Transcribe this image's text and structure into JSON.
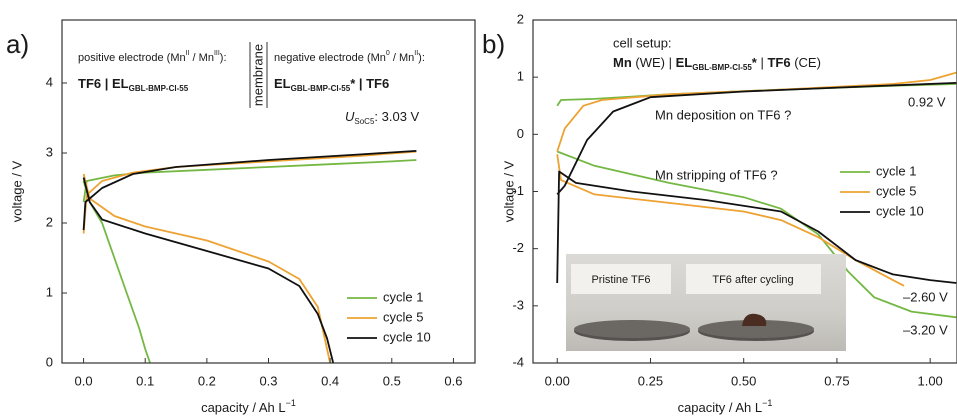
{
  "chart_data": [
    {
      "type": "line",
      "panel_label": "a)",
      "xlabel": {
        "text": "capacity / Ah L",
        "sup": "−1"
      },
      "ylabel": "voltage / V",
      "xlim": [
        -0.035,
        0.635
      ],
      "ylim": [
        0,
        4.9
      ],
      "xticks": [
        {
          "value": 0,
          "label": "0.0"
        },
        0.1,
        0.2,
        0.3,
        0.4,
        0.5,
        0.6
      ],
      "yticks": [
        0,
        1,
        2,
        3,
        4
      ],
      "legend": "lower right",
      "series": [
        {
          "name": "cycle 1",
          "color": "#74b843",
          "x": [
            0,
            0.005,
            0.05,
            0.1,
            0.2,
            0.3,
            0.4,
            0.5,
            0.54,
            null,
            0,
            0.01,
            0.03,
            0.05,
            0.07,
            0.09,
            0.1,
            0.108
          ],
          "values": [
            2.3,
            2.6,
            2.68,
            2.72,
            2.76,
            2.8,
            2.84,
            2.88,
            2.9,
            null,
            2.6,
            2.3,
            2.0,
            1.5,
            1.0,
            0.5,
            0.2,
            0
          ]
        },
        {
          "name": "cycle 5",
          "color": "#eda232",
          "x": [
            0,
            0.005,
            0.03,
            0.08,
            0.15,
            0.3,
            0.45,
            0.54,
            null,
            0,
            0.01,
            0.05,
            0.1,
            0.2,
            0.3,
            0.35,
            0.38,
            0.39,
            0.4
          ],
          "values": [
            1.85,
            2.4,
            2.6,
            2.72,
            2.8,
            2.88,
            2.96,
            3.02,
            null,
            2.7,
            2.35,
            2.1,
            1.95,
            1.75,
            1.45,
            1.2,
            0.8,
            0.4,
            0
          ]
        },
        {
          "name": "cycle 10",
          "color": "#111111",
          "x": [
            0,
            0.003,
            0.01,
            0.03,
            0.08,
            0.15,
            0.3,
            0.45,
            0.54,
            null,
            0,
            0.01,
            0.03,
            0.1,
            0.2,
            0.3,
            0.35,
            0.38,
            0.395,
            0.405
          ],
          "values": [
            1.9,
            2.3,
            2.35,
            2.5,
            2.7,
            2.8,
            2.9,
            2.98,
            3.03,
            null,
            2.65,
            2.3,
            2.05,
            1.85,
            1.6,
            1.35,
            1.1,
            0.7,
            0.35,
            0
          ]
        }
      ],
      "annotations": {
        "positive": {
          "text": "positive electrode (Mn",
          "sup1": "II",
          "mid": " / Mn",
          "sup2": "III",
          "end": "):"
        },
        "positive_cell": {
          "text": "TF6 | EL",
          "sub": "GBL-BMP-Cl-55"
        },
        "membrane": "membrane",
        "negative": {
          "text": "negative electrode (Mn",
          "sup1": "0",
          "mid": " / Mn",
          "sup2": "II",
          "end": "):"
        },
        "negative_cell": {
          "text": "EL",
          "sub": "GBL-BMP-Cl-55",
          "end": "* | TF6"
        },
        "usoc": {
          "text": "U",
          "sub": "SoC5",
          "end": ": 3.03 V"
        }
      }
    },
    {
      "type": "line",
      "panel_label": "b)",
      "xlabel": {
        "text": "capacity / Ah L",
        "sup": "−1"
      },
      "ylabel": "voltage / V",
      "xlim": [
        -0.065,
        1.072
      ],
      "ylim": [
        -4,
        2
      ],
      "xticks": [
        {
          "value": 0,
          "label": "0.00"
        },
        {
          "value": 0.25,
          "label": "0.25"
        },
        {
          "value": 0.5,
          "label": "0.50"
        },
        {
          "value": 0.75,
          "label": "0.75"
        },
        {
          "value": 1,
          "label": "1.00"
        }
      ],
      "yticks": [
        -4,
        -3,
        -2,
        -1,
        0,
        1,
        2
      ],
      "legend": "center right",
      "series": [
        {
          "name": "cycle 1",
          "color": "#74b843",
          "x": [
            0,
            0.01,
            0.1,
            0.3,
            0.6,
            0.9,
            1.07,
            null,
            0,
            0.1,
            0.3,
            0.5,
            0.6,
            0.7,
            0.78,
            0.85,
            0.95,
            1.07
          ],
          "values": [
            0.5,
            0.6,
            0.62,
            0.7,
            0.78,
            0.85,
            0.88,
            null,
            -0.3,
            -0.55,
            -0.85,
            -1.1,
            -1.3,
            -1.75,
            -2.4,
            -2.85,
            -3.1,
            -3.2
          ]
        },
        {
          "name": "cycle 5",
          "color": "#eda232",
          "x": [
            0,
            0.02,
            0.07,
            0.12,
            0.3,
            0.6,
            0.9,
            1.0,
            1.07,
            null,
            0,
            0.01,
            0.1,
            0.3,
            0.5,
            0.6,
            0.7,
            0.8,
            0.9,
            0.93
          ],
          "values": [
            -0.3,
            0.1,
            0.5,
            0.6,
            0.7,
            0.78,
            0.88,
            0.95,
            1.08,
            null,
            -0.35,
            -0.8,
            -1.05,
            -1.2,
            -1.35,
            -1.5,
            -1.8,
            -2.2,
            -2.55,
            -2.65
          ]
        },
        {
          "name": "cycle 10",
          "color": "#111111",
          "x": [
            0,
            0.02,
            0.08,
            0.15,
            0.25,
            0.5,
            0.8,
            1.07,
            null,
            0,
            0.005,
            0.05,
            0.2,
            0.4,
            0.6,
            0.7,
            0.8,
            0.9,
            1.0,
            1.07
          ],
          "values": [
            -1.05,
            -0.9,
            -0.1,
            0.4,
            0.65,
            0.75,
            0.83,
            0.9,
            null,
            -2.6,
            -0.65,
            -0.85,
            -1.0,
            -1.15,
            -1.35,
            -1.7,
            -2.2,
            -2.45,
            -2.55,
            -2.6
          ]
        }
      ],
      "annotations": {
        "setup_title": "cell setup:",
        "setup": {
          "p1": "Mn",
          "p2": " (WE) | ",
          "p3": "EL",
          "p4": "GBL-BMP-Cl-55",
          "p5": "*",
          "p6": " | ",
          "p7": "TF6",
          "p8": " (CE)"
        },
        "deposition": "Mn deposition on TF6 ?",
        "stripping": "Mn stripping of TF6 ?",
        "v_top": "0.92 V",
        "v_mid": "–2.60 V",
        "v_low": "–3.20 V",
        "photo_left": "Pristine TF6",
        "photo_right": "TF6 after cycling"
      }
    }
  ]
}
